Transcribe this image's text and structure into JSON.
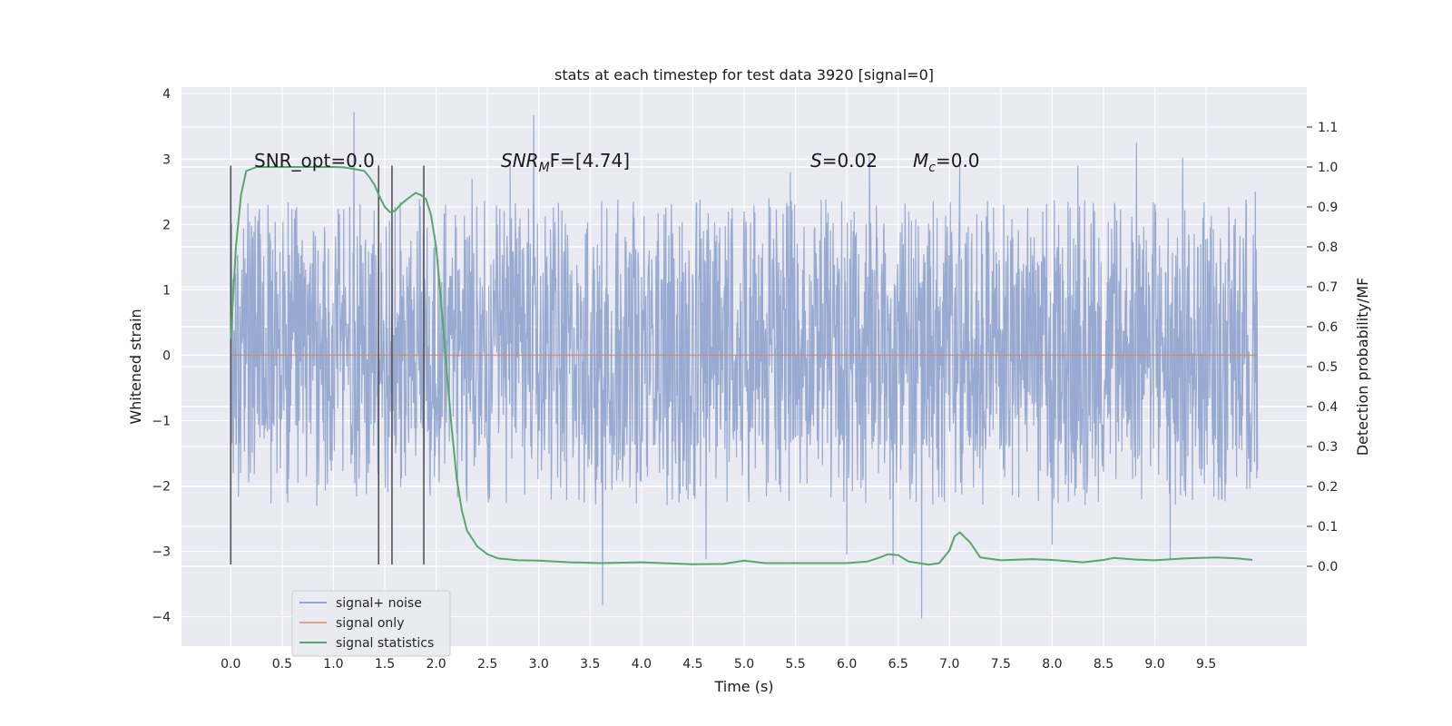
{
  "chart_data": {
    "type": "line",
    "title": "stats at each timestep for test data 3920 [signal=0]",
    "xlabel": "Time (s)",
    "ylabel_left": "Whitened strain",
    "ylabel_right": "Detection probability/MF",
    "xlim": [
      -0.48,
      10.48
    ],
    "ylim_left": [
      -4.45,
      4.1
    ],
    "ylim_right": [
      -0.2,
      1.2
    ],
    "x_ticks": [
      "0.0",
      "0.5",
      "1.0",
      "1.5",
      "2.0",
      "2.5",
      "3.0",
      "3.5",
      "4.0",
      "4.5",
      "5.0",
      "5.5",
      "6.0",
      "6.5",
      "7.0",
      "7.5",
      "8.0",
      "8.5",
      "9.0",
      "9.5"
    ],
    "y_left_ticks": [
      "−4",
      "−3",
      "−2",
      "−1",
      "0",
      "1",
      "2",
      "3",
      "4"
    ],
    "y_right_ticks": [
      "0.0",
      "0.1",
      "0.2",
      "0.3",
      "0.4",
      "0.5",
      "0.6",
      "0.7",
      "0.8",
      "0.9",
      "1.0",
      "1.1"
    ],
    "grid": true,
    "legend_position": "lower-left",
    "annotations": {
      "snr_opt": "SNR_opt=0.0",
      "snr_mf_prefix": "SNR",
      "snr_mf_sub": "M",
      "snr_mf_suffix": "F=[4.74]",
      "s_var": "S",
      "s_value": "=0.02",
      "mc_var": "M",
      "mc_sub": "c",
      "mc_value": "=0.0"
    },
    "vertical_markers_x": [
      0.0,
      1.44,
      1.57,
      1.88
    ],
    "vertical_markers_range_left": [
      -3.2,
      2.9
    ],
    "series": [
      {
        "name": "signal+ noise",
        "color": "#94a6cf",
        "axis": "left",
        "x_range": [
          0.0,
          10.0
        ],
        "envelope_typical": [
          -1.4,
          1.6
        ],
        "peaks": [
          {
            "x": 1.2,
            "y": 3.72
          },
          {
            "x": 2.95,
            "y": 3.67
          },
          {
            "x": 2.35,
            "y": 2.7
          },
          {
            "x": 2.72,
            "y": 2.9
          },
          {
            "x": 5.45,
            "y": 2.8
          },
          {
            "x": 6.22,
            "y": 3.05
          },
          {
            "x": 7.1,
            "y": 2.9
          },
          {
            "x": 8.25,
            "y": 2.9
          },
          {
            "x": 8.82,
            "y": 3.25
          },
          {
            "x": 9.27,
            "y": 3.02
          },
          {
            "x": 9.98,
            "y": 2.5
          }
        ],
        "troughs": [
          {
            "x": 3.62,
            "y": -3.83
          },
          {
            "x": 6.73,
            "y": -4.03
          },
          {
            "x": 4.63,
            "y": -3.12
          },
          {
            "x": 6.0,
            "y": -3.05
          },
          {
            "x": 9.15,
            "y": -3.12
          },
          {
            "x": 8.0,
            "y": -2.9
          },
          {
            "x": 6.45,
            "y": -3.2
          }
        ]
      },
      {
        "name": "signal only",
        "color": "#dd8452",
        "axis": "left",
        "x": [
          0.0,
          10.0
        ],
        "y": [
          0.0,
          0.0
        ]
      },
      {
        "name": "signal statistics",
        "color": "#55a868",
        "axis": "right",
        "x": [
          0.0,
          0.05,
          0.1,
          0.15,
          0.25,
          0.4,
          0.6,
          0.8,
          1.0,
          1.1,
          1.2,
          1.3,
          1.35,
          1.4,
          1.45,
          1.5,
          1.55,
          1.6,
          1.65,
          1.72,
          1.8,
          1.85,
          1.9,
          1.95,
          2.0,
          2.05,
          2.1,
          2.15,
          2.2,
          2.25,
          2.3,
          2.4,
          2.5,
          2.6,
          2.8,
          3.0,
          3.3,
          3.6,
          4.0,
          4.5,
          4.8,
          5.0,
          5.2,
          5.5,
          6.0,
          6.2,
          6.3,
          6.4,
          6.5,
          6.6,
          6.8,
          6.9,
          7.0,
          7.05,
          7.1,
          7.2,
          7.3,
          7.5,
          7.8,
          8.0,
          8.3,
          8.5,
          8.6,
          8.8,
          9.0,
          9.3,
          9.6,
          9.8,
          9.95
        ],
        "y": [
          0.57,
          0.8,
          0.93,
          0.99,
          1.0,
          1.0,
          1.0,
          1.0,
          1.0,
          0.999,
          0.995,
          0.99,
          0.975,
          0.955,
          0.925,
          0.9,
          0.887,
          0.89,
          0.905,
          0.92,
          0.935,
          0.93,
          0.92,
          0.88,
          0.8,
          0.66,
          0.5,
          0.35,
          0.22,
          0.14,
          0.09,
          0.05,
          0.03,
          0.02,
          0.015,
          0.014,
          0.01,
          0.008,
          0.01,
          0.005,
          0.006,
          0.014,
          0.008,
          0.008,
          0.008,
          0.012,
          0.02,
          0.03,
          0.028,
          0.012,
          0.004,
          0.008,
          0.04,
          0.075,
          0.085,
          0.06,
          0.022,
          0.015,
          0.018,
          0.016,
          0.01,
          0.016,
          0.021,
          0.017,
          0.015,
          0.02,
          0.022,
          0.02,
          0.016
        ]
      }
    ]
  }
}
